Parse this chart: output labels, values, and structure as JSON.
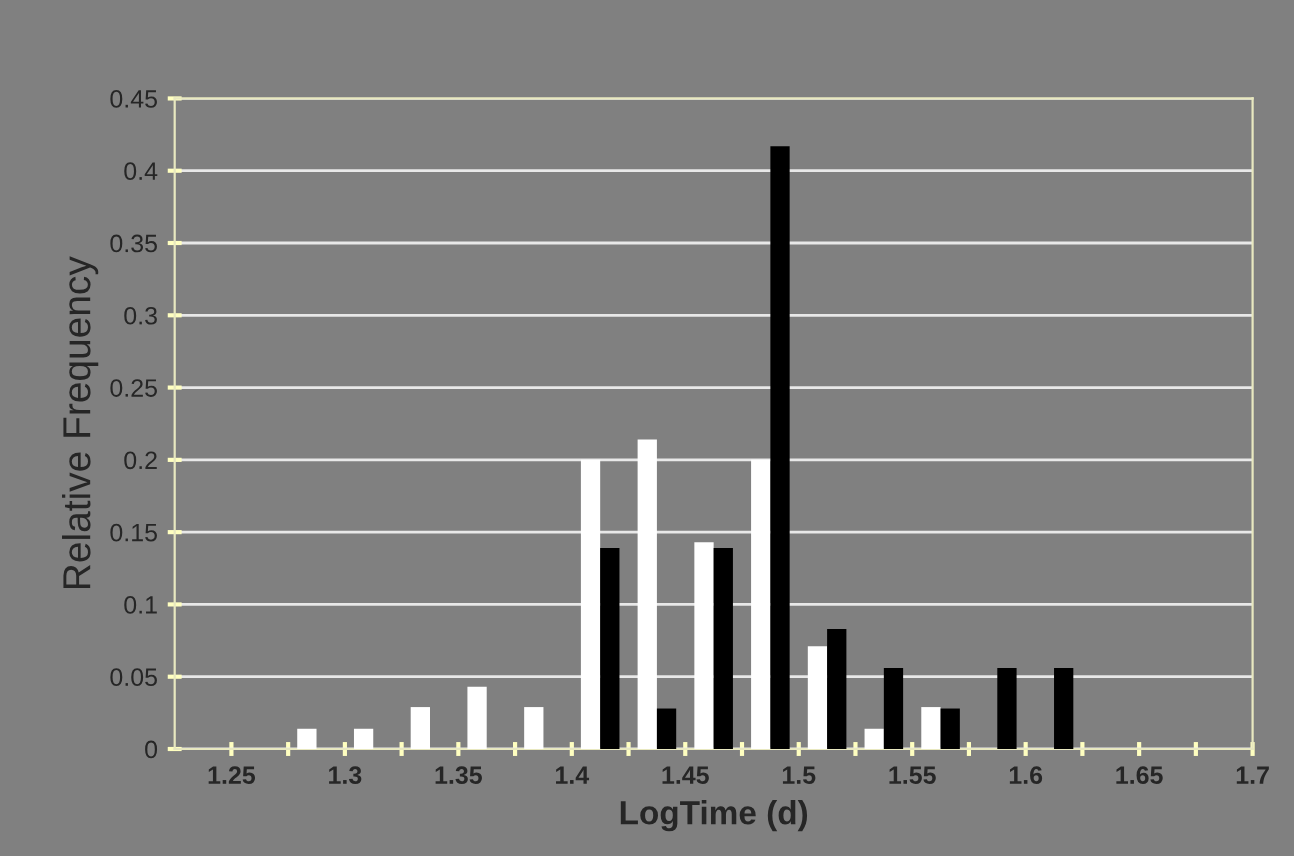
{
  "chart_data": {
    "type": "bar",
    "xlabel": "LogTime (d)",
    "ylabel": "Relative Frequency",
    "series": [
      {
        "color": "#ffffff",
        "x": [
          1.2875,
          1.3125,
          1.3375,
          1.3625,
          1.3875,
          1.4125,
          1.4375,
          1.4625,
          1.4875,
          1.5125,
          1.5375,
          1.5625
        ],
        "values": [
          0.014,
          0.014,
          0.029,
          0.043,
          0.029,
          0.2,
          0.214,
          0.143,
          0.2,
          0.071,
          0.014,
          0.029
        ]
      },
      {
        "color": "#000000",
        "x": [
          1.4125,
          1.4375,
          1.4625,
          1.4875,
          1.5125,
          1.5375,
          1.5625,
          1.5875,
          1.6125
        ],
        "values": [
          0.139,
          0.028,
          0.139,
          0.417,
          0.083,
          0.056,
          0.028,
          0.056,
          0.056
        ]
      }
    ],
    "xlim": [
      1.225,
      1.7
    ],
    "xticks": [
      1.25,
      {
        "value": 1.275,
        "label": null
      },
      1.3,
      {
        "value": 1.325,
        "label": null
      },
      1.35,
      {
        "value": 1.375,
        "label": null
      },
      1.4,
      {
        "value": 1.425,
        "label": null
      },
      1.45,
      {
        "value": 1.475,
        "label": null
      },
      1.5,
      {
        "value": 1.525,
        "label": null
      },
      1.55,
      {
        "value": 1.575,
        "label": null
      },
      1.6,
      {
        "value": 1.625,
        "label": null
      },
      1.65,
      {
        "value": 1.675,
        "label": null
      },
      1.7
    ],
    "ylim": [
      0,
      0.45
    ],
    "yticks": [
      0,
      0.05,
      0.1,
      0.15,
      0.2,
      0.25,
      0.3,
      0.35,
      0.4,
      0.45
    ],
    "grid": "y"
  }
}
